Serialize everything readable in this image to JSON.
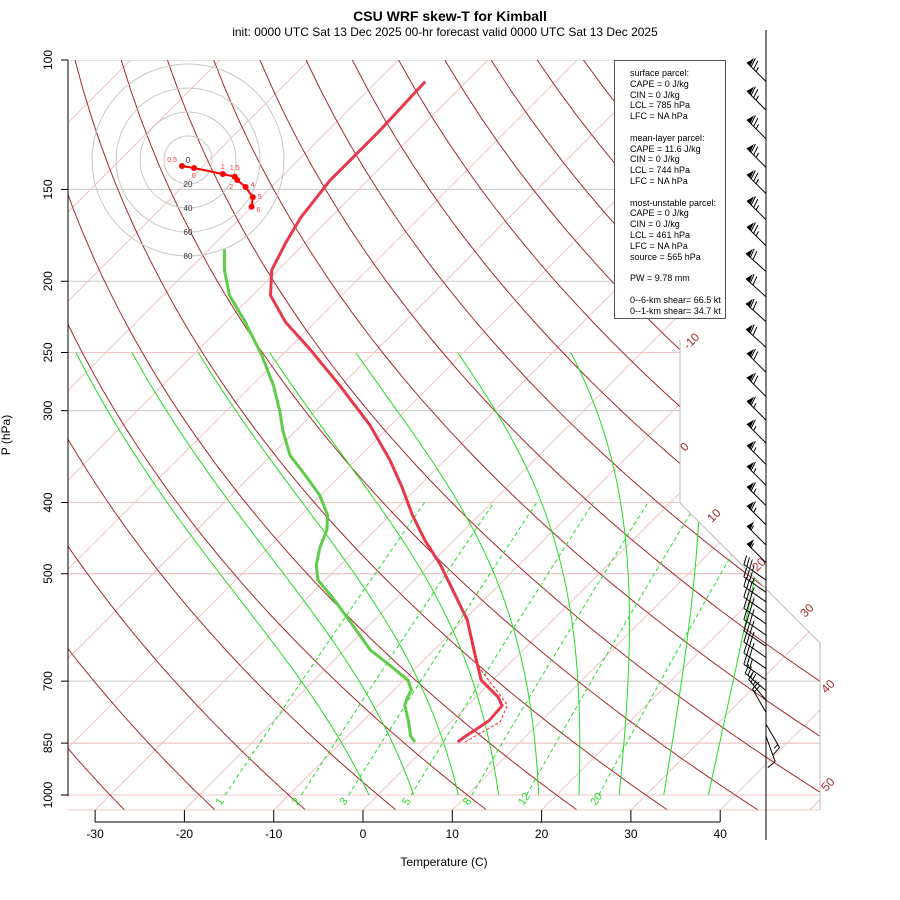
{
  "chart_data": {
    "type": "skew-t",
    "title": "CSU WRF skew-T for Kimball",
    "subtitle": "init: 0000 UTC Sat 13 Dec 2025     00-hr forecast valid 0000 UTC Sat 13 Dec 2025",
    "xlabel": "Temperature (C)",
    "ylabel": "P (hPa)",
    "xlim": [
      -33,
      45
    ],
    "ylim_hPa": [
      1050,
      100
    ],
    "x_ticks": [
      -30,
      -20,
      -10,
      0,
      10,
      20,
      30,
      40
    ],
    "y_ticks": [
      100,
      150,
      200,
      250,
      300,
      400,
      500,
      700,
      850,
      1000
    ],
    "isotherms_C": [
      -110,
      -100,
      -90,
      -80,
      -70,
      -60,
      -50,
      -40,
      -30,
      -20,
      -10,
      0,
      10,
      20,
      30,
      40,
      50
    ],
    "dry_adiabats_C": [
      -40,
      -30,
      -20,
      -10,
      0,
      10,
      20,
      30,
      40,
      50,
      60,
      70,
      80,
      90,
      100,
      110,
      120,
      130,
      140,
      150,
      160
    ],
    "dry_adiabat_labels": [
      "-10",
      "0",
      "10",
      "20",
      "30",
      "40",
      "50"
    ],
    "moist_adiabats_thetaw_C": [
      -1,
      4,
      9,
      13.5,
      18,
      22.5,
      27,
      32,
      37
    ],
    "mixing_ratio_lines_gkg": [
      "1",
      "2",
      "3",
      "5",
      "8",
      "12",
      "20"
    ],
    "temperature": {
      "name": "Temperature",
      "color": "#e8394c",
      "p": [
        847,
        832,
        816,
        791,
        756,
        736,
        698,
        645,
        578,
        534,
        486,
        450,
        416,
        381,
        350,
        314,
        277,
        248,
        227,
        209,
        193,
        177,
        164,
        146,
        125,
        107
      ],
      "t": [
        3.0,
        3.2,
        3.6,
        4.1,
        3.9,
        2.5,
        -1.3,
        -4.8,
        -9.6,
        -13.8,
        -18.8,
        -23.3,
        -27.5,
        -31.8,
        -36.2,
        -42.3,
        -50.2,
        -57.4,
        -63.4,
        -68.0,
        -70.7,
        -72.2,
        -73.3,
        -74.2,
        -74.2,
        -74.6
      ]
    },
    "dewpoint": {
      "name": "Dewpoint",
      "color": "#5fcc4a",
      "p": [
        847,
        832,
        791,
        754,
        737,
        720,
        698,
        666,
        635,
        587,
        543,
        510,
        486,
        461,
        436,
        416,
        391,
        367,
        345,
        319,
        301,
        277,
        252,
        227,
        209,
        193,
        181
      ],
      "t": [
        -1.8,
        -2.9,
        -5.0,
        -7.1,
        -7.6,
        -8.0,
        -9.5,
        -13.2,
        -17.1,
        -21.9,
        -26.7,
        -30.8,
        -32.7,
        -34.2,
        -35.4,
        -37.0,
        -40.1,
        -44.0,
        -47.9,
        -51.5,
        -53.9,
        -57.6,
        -62.3,
        -67.9,
        -72.6,
        -76.0,
        -78.3
      ]
    },
    "parcel": {
      "name": "Parcel",
      "color": "#ff2020",
      "p": [
        847,
        795,
        754,
        666,
        587
      ],
      "t": [
        3.8,
        5.5,
        4.4,
        -3.4,
        -9.0
      ]
    },
    "winds": {
      "p": [
        107,
        117,
        128,
        140,
        152,
        165,
        179,
        194,
        210,
        227,
        246,
        266,
        287,
        309,
        332,
        355,
        379,
        404,
        429,
        457,
        483,
        510,
        530,
        546,
        565,
        585,
        606,
        628,
        650,
        673,
        697,
        721,
        743,
        772,
        801,
        832
      ],
      "dir": [
        315,
        315,
        315,
        315,
        315,
        315,
        315,
        312,
        312,
        312,
        312,
        315,
        315,
        315,
        315,
        315,
        315,
        315,
        315,
        315,
        315,
        305,
        305,
        305,
        305,
        305,
        305,
        305,
        305,
        305,
        305,
        310,
        320,
        330,
        150,
        160
      ],
      "spd": [
        75,
        75,
        75,
        75,
        75,
        75,
        75,
        70,
        70,
        70,
        70,
        70,
        70,
        65,
        65,
        65,
        65,
        65,
        65,
        55,
        55,
        35,
        35,
        35,
        35,
        35,
        35,
        35,
        35,
        30,
        30,
        25,
        25,
        20,
        15,
        10
      ]
    },
    "hodograph": {
      "ring_labels": [
        "0",
        "20",
        "40",
        "60",
        "80"
      ],
      "u_kt": [
        -5,
        5,
        29,
        39,
        41,
        48,
        54,
        53
      ],
      "v_kt": [
        -5,
        -6.7,
        -11.7,
        -14,
        -16.7,
        -22.5,
        -31,
        -39
      ],
      "point_labels": [
        "0.5",
        "0",
        "1",
        "1.5",
        "2",
        "4",
        "5",
        "6"
      ]
    }
  },
  "info_box": {
    "surface": [
      "surface parcel:",
      "CAPE = 0 J/kg",
      "CIN = 0 J/kg",
      "LCL = 785 hPa",
      "LFC = NA hPa"
    ],
    "mean_layer": [
      "mean-layer parcel:",
      "CAPE = 11.6 J/kg",
      "CIN = 0 J/kg",
      "LCL = 744 hPa",
      "LFC = NA hPa"
    ],
    "most_unstable": [
      "most-unstable parcel:",
      "CAPE = 0 J/kg",
      "CIN = 0 J/kg",
      "LCL = 461 hPa",
      "LFC = NA hPa",
      "source = 565 hPa"
    ],
    "pw": "PW =  9.78 mm",
    "shear": [
      "0--6-km shear= 66.5 kt",
      "0--1-km shear= 34.7 kt"
    ]
  },
  "colors": {
    "isotherm": "#f0c4c4",
    "isobar": "#c8c8c8",
    "dry_adiabat": "#a52a2a",
    "moist_adiabat": "#22dd22",
    "mixing_ratio": "#22dd22",
    "hodo": "#ff0000"
  }
}
